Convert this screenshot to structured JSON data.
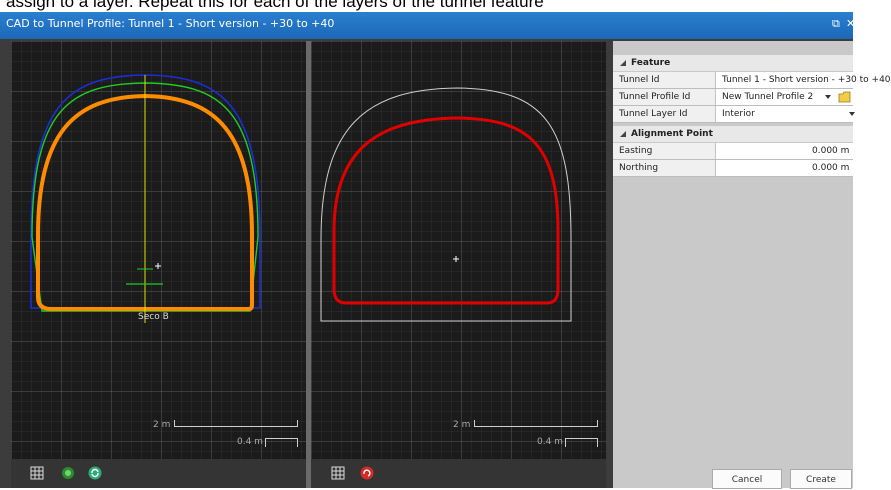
{
  "caption": {
    "text": "assign to a layer.  Repeat this for each of the layers of the tunnel feature"
  },
  "window": {
    "title": "CAD to Tunnel Profile: Tunnel 1 - Short version - +30 to +40",
    "restore_glyph": "⧉",
    "close_glyph": "✕"
  },
  "left_view": {
    "section_label": "Seco B",
    "scale_major": "2 m",
    "scale_minor": "0.4 m"
  },
  "right_view": {
    "scale_major": "2 m",
    "scale_minor": "0.4 m"
  },
  "panel": {
    "feature": {
      "header": "Feature",
      "rows": [
        {
          "label": "Tunnel Id",
          "value": "Tunnel 1 - Short version - +30 to +40"
        },
        {
          "label": "Tunnel Profile Id",
          "value": "New Tunnel Profile 2"
        },
        {
          "label": "Tunnel Layer Id",
          "value": "Interior"
        }
      ]
    },
    "alignment": {
      "header": "Alignment Point",
      "rows": [
        {
          "label": "Easting",
          "value": "0.000 m"
        },
        {
          "label": "Northing",
          "value": "0.000 m"
        }
      ]
    }
  },
  "buttons": {
    "cancel": "Cancel",
    "create": "Create"
  },
  "colors": {
    "titlebar": "#1c68b8",
    "orange_profile": "#ff8c00",
    "red_profile": "#e00000",
    "outer_blue": "#1a2fd6",
    "outer_green": "#22cc22",
    "axis_yellow": "#e0e000"
  },
  "icons": [
    "grid-icon",
    "snap-toggle-icon",
    "refresh-icon",
    "grid-icon",
    "reset-icon",
    "collapse-triangle-icon",
    "dropdown-arrow-icon",
    "folder-icon"
  ]
}
